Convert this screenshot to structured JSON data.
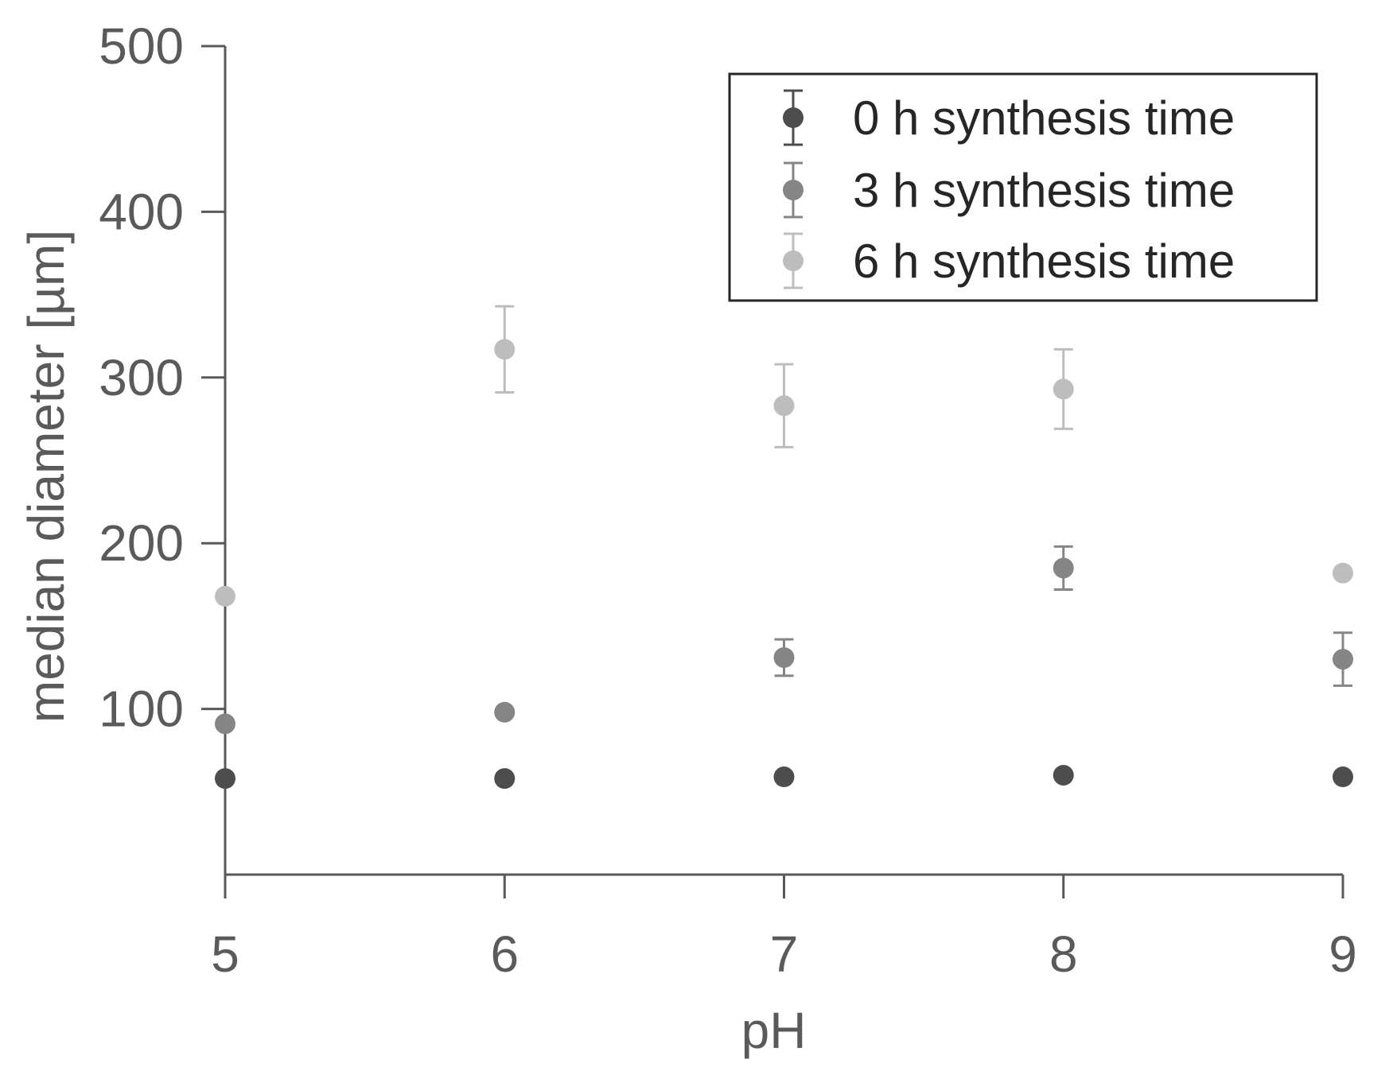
{
  "chart_data": {
    "type": "scatter",
    "xlabel": "pH",
    "ylabel": "median diameter [µm]",
    "xlim": [
      5,
      9
    ],
    "ylim": [
      0,
      500
    ],
    "xticks": [
      5,
      6,
      7,
      8,
      9
    ],
    "yticks": [
      100,
      200,
      300,
      400,
      500
    ],
    "grid": false,
    "legend_position": "top-right",
    "series": [
      {
        "name": "0 h synthesis time",
        "color": "#4d4d4d",
        "x": [
          5,
          6,
          7,
          8,
          9
        ],
        "y": [
          58,
          58,
          59,
          60,
          59
        ],
        "err": [
          0,
          0,
          0,
          0,
          0
        ]
      },
      {
        "name": "3 h synthesis time",
        "color": "#858585",
        "x": [
          5,
          6,
          7,
          8,
          9
        ],
        "y": [
          91,
          98,
          131,
          185,
          130
        ],
        "err": [
          0,
          0,
          11,
          13,
          16
        ]
      },
      {
        "name": "6 h synthesis time",
        "color": "#bdbdbd",
        "x": [
          5,
          6,
          7,
          8,
          9
        ],
        "y": [
          168,
          317,
          283,
          293,
          182
        ],
        "err": [
          0,
          26,
          25,
          24,
          0
        ]
      }
    ]
  }
}
